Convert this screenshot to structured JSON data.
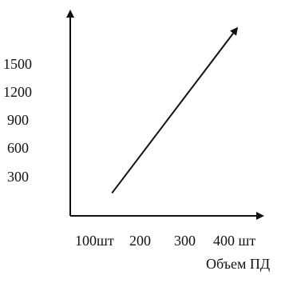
{
  "chart_data": {
    "type": "line",
    "title": "",
    "xlabel": "Объем ПД",
    "ylabel": "",
    "x_tick_labels": [
      "100шт",
      "200",
      "300",
      "400 шт"
    ],
    "y_tick_labels": [
      "1500",
      "1200",
      "900",
      "600",
      "300"
    ],
    "x_ticks": [
      100,
      200,
      300,
      400
    ],
    "y_ticks": [
      1500,
      1200,
      900,
      600,
      300
    ],
    "xlim": [
      0,
      450
    ],
    "ylim": [
      0,
      1800
    ],
    "series": [
      {
        "x": [
          100,
          400
        ],
        "y": [
          200,
          1650
        ]
      }
    ],
    "grid": false,
    "legend": "none",
    "colors": {
      "axis": "#111111",
      "line": "#111111",
      "text": "#111111"
    }
  }
}
